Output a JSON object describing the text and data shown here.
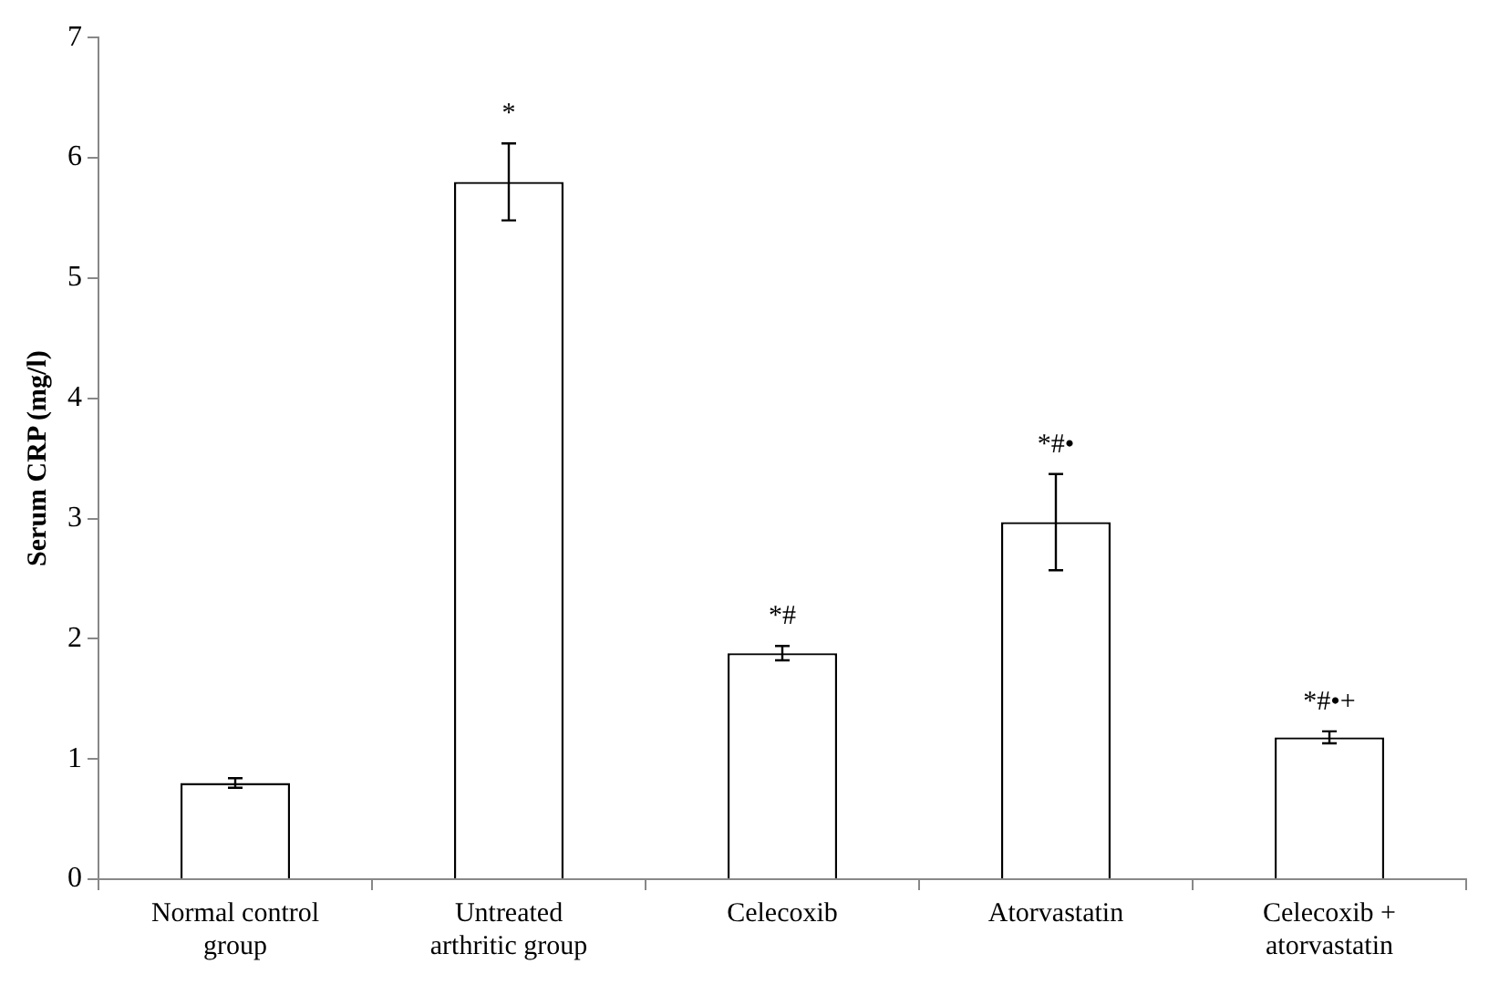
{
  "chart_data": {
    "type": "bar",
    "ylabel": "Serum CRP (mg/l)",
    "categories": [
      "Normal control group",
      "Untreated arthritic group",
      "Celecoxib",
      "Atorvastatin",
      "Celecoxib + atorvastatin"
    ],
    "values": [
      0.8,
      5.8,
      1.88,
      2.97,
      1.18
    ],
    "errors": [
      0.04,
      0.32,
      0.06,
      0.4,
      0.05
    ],
    "color": "#ffffff",
    "value_labels": [
      null,
      "*",
      "*#",
      "*#•",
      "*#•+"
    ],
    "ylim": [
      0,
      7
    ],
    "yticks": [
      0,
      1,
      2,
      3,
      4,
      5,
      6,
      7
    ],
    "grid": false,
    "legend": false
  }
}
